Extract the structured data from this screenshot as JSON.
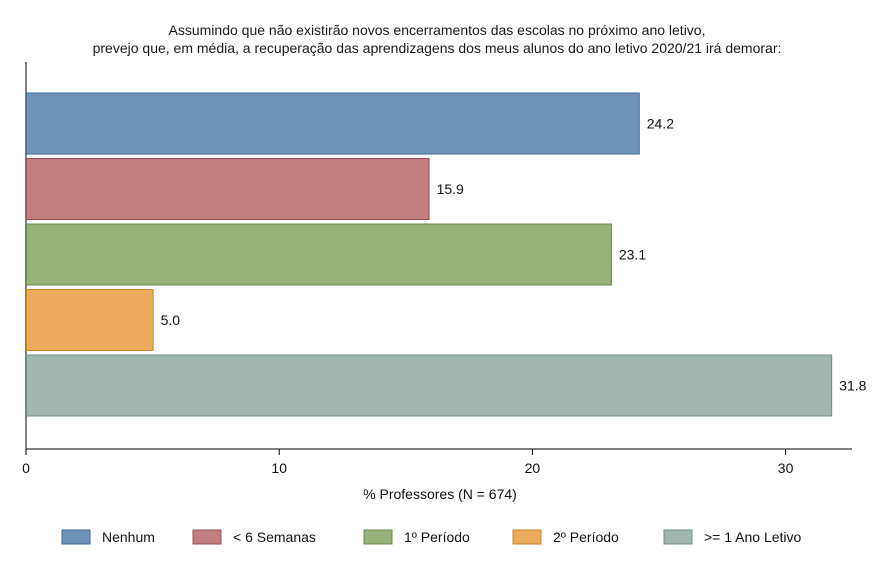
{
  "chart_data": {
    "type": "bar",
    "orientation": "horizontal",
    "title": [
      "Assumindo que não existirão novos encerramentos das escolas no próximo ano letivo,",
      "prevejo que, em média, a recuperação das aprendizagens dos meus alunos do ano letivo 2020/21 irá demorar:"
    ],
    "xlabel": "% Professores (N = 674)",
    "ylabel": "",
    "xlim": [
      0,
      32.5
    ],
    "xticks": [
      0,
      10,
      20,
      30
    ],
    "grid": false,
    "legend_position": "bottom",
    "series": [
      {
        "name": "Nenhum",
        "value": 24.2,
        "label": "24.2",
        "color": "#7094b8",
        "edge": "#3e6894"
      },
      {
        "name": "< 6 Semanas",
        "value": 15.9,
        "label": "15.9",
        "color": "#c27d7f",
        "edge": "#9b4f53"
      },
      {
        "name": "1º Período",
        "value": 23.1,
        "label": "23.1",
        "color": "#98b07a",
        "edge": "#6b8a4c"
      },
      {
        "name": "2º Período",
        "value": 5.0,
        "label": "5.0",
        "color": "#ecab5c",
        "edge": "#c8822c"
      },
      {
        "name": ">= 1 Ano Letivo",
        "value": 31.8,
        "label": "31.8",
        "color": "#a2b6b0",
        "edge": "#72918a"
      }
    ]
  }
}
